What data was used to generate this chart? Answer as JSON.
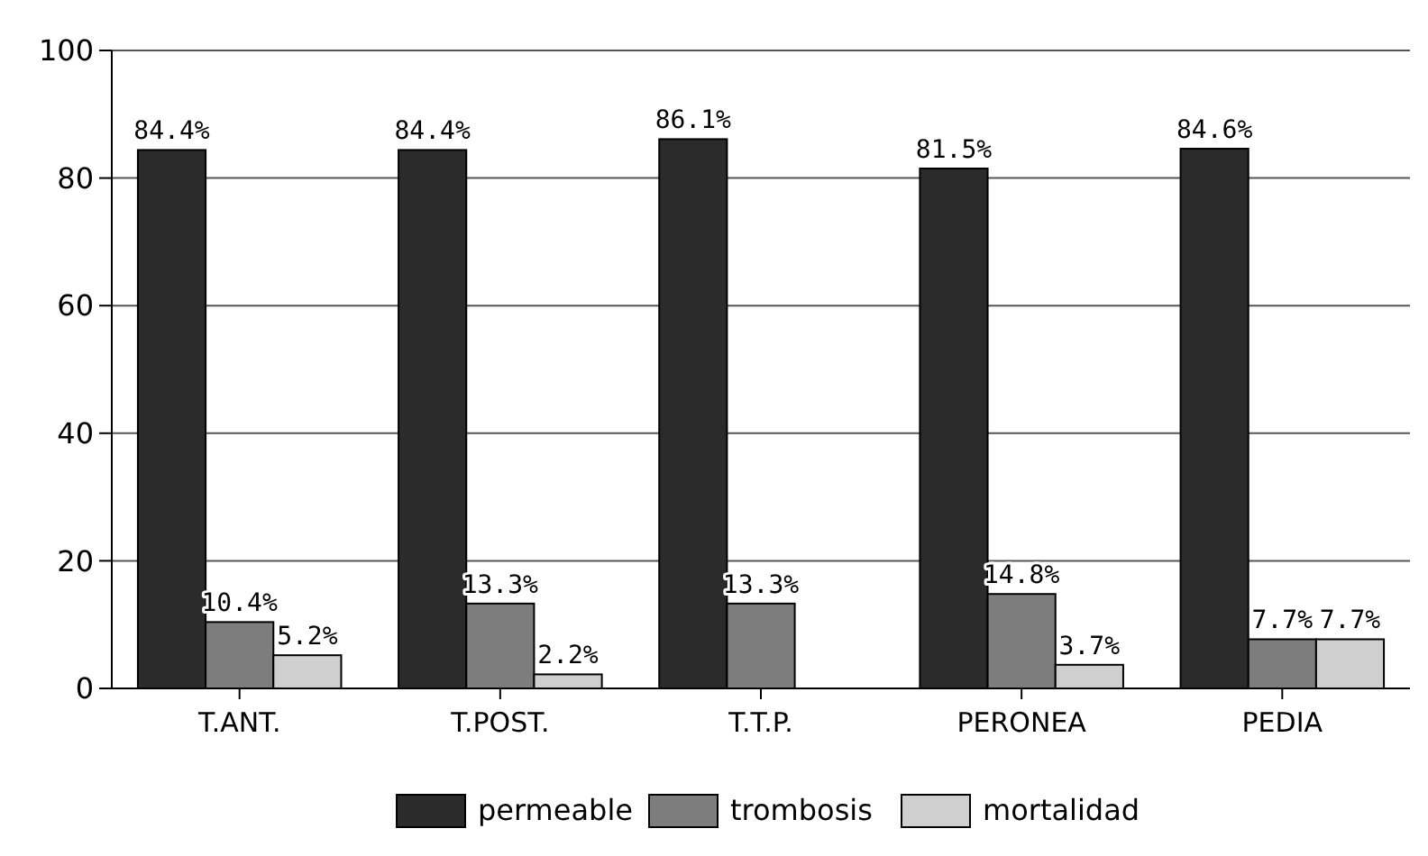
{
  "chart_data": {
    "type": "bar",
    "categories": [
      "T.ANT.",
      "T.POST.",
      "T.T.P.",
      "PERONEA",
      "PEDIA"
    ],
    "series": [
      {
        "name": "permeable",
        "color": "#2b2b2b",
        "values": [
          84.4,
          84.4,
          86.1,
          81.5,
          84.6
        ],
        "value_labels": [
          "84.4%",
          "84.4%",
          "86.1%",
          "81.5%",
          "84.6%"
        ]
      },
      {
        "name": "trombosis",
        "color": "#7d7d7d",
        "values": [
          10.4,
          13.3,
          13.3,
          14.8,
          7.7
        ],
        "value_labels": [
          "10.4%",
          "13.3%",
          "13.3%",
          "14.8%",
          "7.7%"
        ]
      },
      {
        "name": "mortalidad",
        "color": "#cfcfcf",
        "values": [
          5.2,
          2.2,
          null,
          3.7,
          7.7
        ],
        "value_labels": [
          "5.2%",
          "2.2%",
          null,
          "3.7%",
          "7.7%"
        ]
      }
    ],
    "ylim": [
      0,
      100
    ],
    "yticks": [
      0,
      20,
      40,
      60,
      80,
      100
    ],
    "grid": "y",
    "legend": "bottom"
  }
}
